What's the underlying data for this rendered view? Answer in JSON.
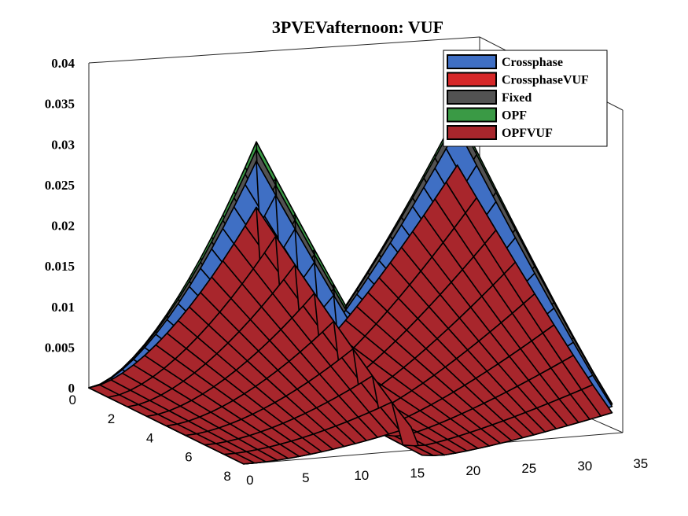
{
  "chart_data": {
    "type": "surface",
    "title": "3PVEVafternoon: VUF",
    "xlabel": "",
    "ylabel": "",
    "zlabel": "",
    "x_ticks": [
      "0",
      "5",
      "10",
      "15",
      "20",
      "25",
      "30",
      "35"
    ],
    "y_ticks": [
      "0",
      "2",
      "4",
      "6",
      "8"
    ],
    "z_ticks": [
      "0",
      "0.005",
      "0.01",
      "0.015",
      "0.02",
      "0.025",
      "0.03",
      "0.035",
      "0.04"
    ],
    "xlim": [
      0,
      35
    ],
    "ylim": [
      0,
      8
    ],
    "zlim": [
      0,
      0.04
    ],
    "legend_position": "top-right",
    "grid": false,
    "series": [
      {
        "name": "Crossphase",
        "color": "#3f6fc4",
        "left_ridge_peak": 0.0285,
        "right_ridge_peak": 0.03
      },
      {
        "name": "CrossphaseVUF",
        "color": "#d62728",
        "left_ridge_peak": 0.0225,
        "right_ridge_peak": 0.0255
      },
      {
        "name": "Fixed",
        "color": "#525252",
        "left_ridge_peak": 0.03,
        "right_ridge_peak": 0.0315
      },
      {
        "name": "OPF",
        "color": "#3a9a45",
        "left_ridge_peak": 0.031,
        "right_ridge_peak": 0.032
      },
      {
        "name": "OPFVUF",
        "color": "#a8262c",
        "left_ridge_peak": 0.0225,
        "right_ridge_peak": 0.0255
      }
    ]
  }
}
